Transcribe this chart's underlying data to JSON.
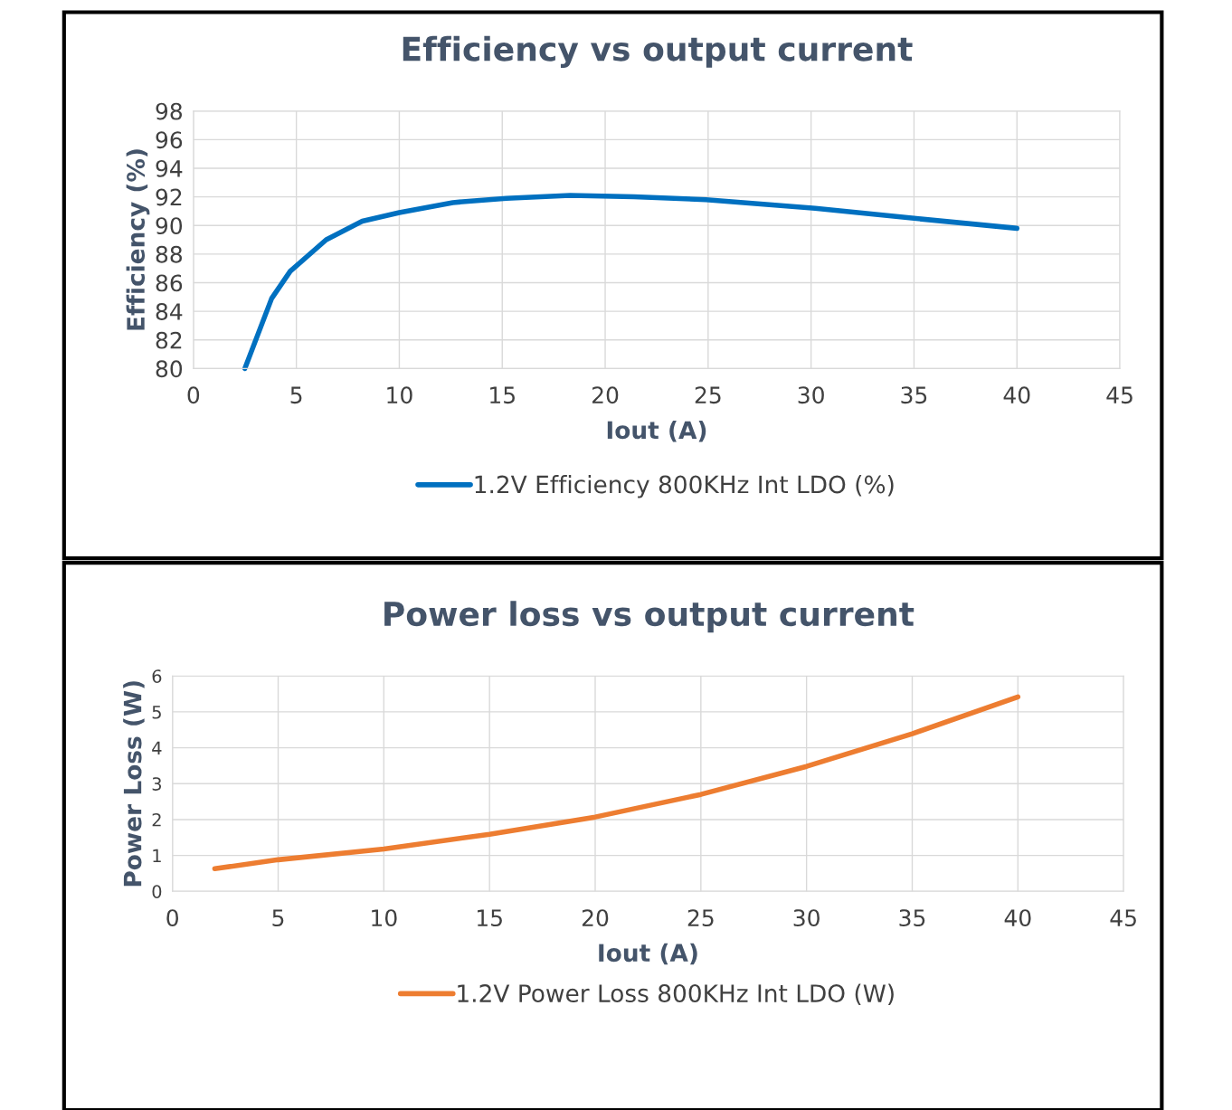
{
  "chart_data": [
    {
      "type": "line",
      "title": "Efficiency vs output current",
      "xlabel": "Iout (A)",
      "ylabel": "Efficiency (%)",
      "xlim": [
        0,
        45
      ],
      "xticks": [
        0,
        5,
        10,
        15,
        20,
        25,
        30,
        35,
        40,
        45
      ],
      "ylim": [
        80,
        98
      ],
      "yticks": [
        80,
        82,
        84,
        86,
        88,
        90,
        92,
        94,
        96,
        98
      ],
      "grid": true,
      "legend": "bottom",
      "marker": "none",
      "line_style": "solid",
      "series": [
        {
          "name": "1.2V Efficiency 800KHz Int LDO (%)",
          "color": "#0070c0",
          "x": [
            2.5,
            3.8,
            4.7,
            6.45,
            8.2,
            10,
            12.6,
            15.2,
            18.3,
            21.4,
            24.9,
            30.2,
            35,
            40
          ],
          "values": [
            80,
            84.9,
            86.8,
            89.0,
            90.3,
            90.9,
            91.6,
            91.9,
            92.1,
            92.0,
            91.8,
            91.2,
            90.5,
            89.8
          ]
        }
      ]
    },
    {
      "type": "line",
      "title": "Power loss vs output current",
      "xlabel": "Iout (A)",
      "ylabel": "Power Loss (W)",
      "xlim": [
        0,
        45
      ],
      "xticks": [
        0,
        5,
        10,
        15,
        20,
        25,
        30,
        35,
        40,
        45
      ],
      "ylim": [
        0,
        6
      ],
      "yticks": [
        0,
        1,
        2,
        3,
        4,
        5,
        6
      ],
      "grid": true,
      "legend": "bottom",
      "marker": "none",
      "line_style": "solid",
      "series": [
        {
          "name": "1.2V Power Loss 800KHz Int LDO (W)",
          "color": "#ed7d31",
          "x": [
            2,
            5,
            10,
            15,
            20,
            25,
            30,
            35,
            40
          ],
          "values": [
            0.63,
            0.88,
            1.18,
            1.59,
            2.07,
            2.7,
            3.48,
            4.39,
            5.42
          ]
        }
      ]
    }
  ]
}
